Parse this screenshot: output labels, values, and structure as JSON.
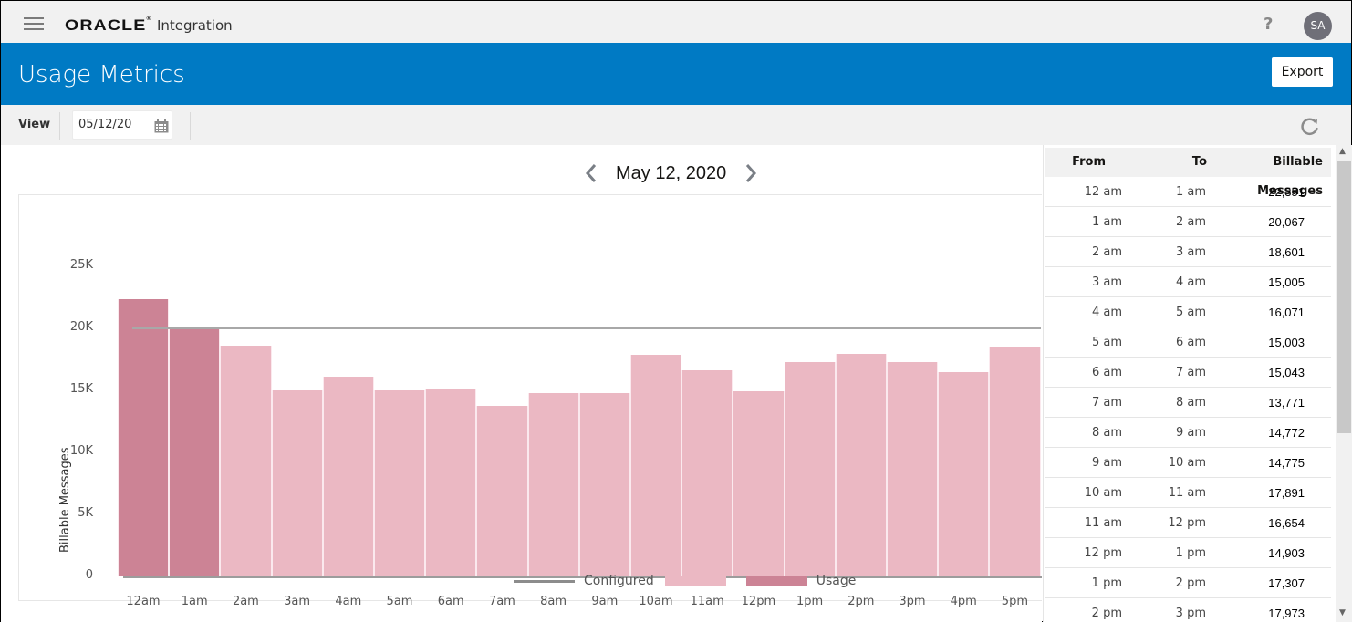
{
  "topbar": {
    "menu_icon": "hamburger-icon",
    "logo": "ORACLE",
    "product": "Integration",
    "help": "?",
    "avatar_initials": "SA"
  },
  "header": {
    "title": "Usage Metrics",
    "export_label": "Export",
    "color": "#007ac4"
  },
  "toolbar": {
    "view_label": "View",
    "date_value": "05/12/20",
    "calendar_icon": "calendar-icon",
    "refresh_icon": "refresh-icon"
  },
  "chart_nav": {
    "prev_icon": "chevron-left-icon",
    "title": "May 12, 2020",
    "next_icon": "chevron-right-icon"
  },
  "chart_data": {
    "type": "bar",
    "title": "May 12, 2020",
    "xlabel": "",
    "ylabel": "Billable Messages",
    "ylim": [
      0,
      25000
    ],
    "yticks": [
      "0",
      "5K",
      "10K",
      "15K",
      "20K",
      "25K"
    ],
    "categories": [
      "12am",
      "1am",
      "2am",
      "3am",
      "4am",
      "5am",
      "6am",
      "7am",
      "8am",
      "9am",
      "10am",
      "11am",
      "12pm",
      "1pm",
      "2pm",
      "3pm",
      "4pm",
      "5pm"
    ],
    "series": [
      {
        "name": "Usage",
        "values": [
          22351,
          20067,
          18601,
          15005,
          16071,
          15003,
          15043,
          13771,
          14772,
          14775,
          17891,
          16654,
          14903,
          17307,
          17973,
          17300,
          16500,
          18500
        ]
      }
    ],
    "over_limit_indices": [
      0,
      1
    ],
    "configured": {
      "name": "Configured",
      "value": 20000
    },
    "colors": {
      "under": "#ebb8c3",
      "over": "#cc8395",
      "configured": "#a8a8a8"
    },
    "legend": [
      "Configured",
      "",
      "Usage"
    ],
    "legend_position": "bottom",
    "grid": false
  },
  "table": {
    "headers": [
      "From",
      "To",
      "Billable Messages"
    ],
    "rows": [
      [
        "12 am",
        "1 am",
        "22,351"
      ],
      [
        "1 am",
        "2 am",
        "20,067"
      ],
      [
        "2 am",
        "3 am",
        "18,601"
      ],
      [
        "3 am",
        "4 am",
        "15,005"
      ],
      [
        "4 am",
        "5 am",
        "16,071"
      ],
      [
        "5 am",
        "6 am",
        "15,003"
      ],
      [
        "6 am",
        "7 am",
        "15,043"
      ],
      [
        "7 am",
        "8 am",
        "13,771"
      ],
      [
        "8 am",
        "9 am",
        "14,772"
      ],
      [
        "9 am",
        "10 am",
        "14,775"
      ],
      [
        "10 am",
        "11 am",
        "17,891"
      ],
      [
        "11 am",
        "12 pm",
        "16,654"
      ],
      [
        "12 pm",
        "1 pm",
        "14,903"
      ],
      [
        "1 pm",
        "2 pm",
        "17,307"
      ],
      [
        "2 pm",
        "3 pm",
        "17,973"
      ]
    ]
  }
}
